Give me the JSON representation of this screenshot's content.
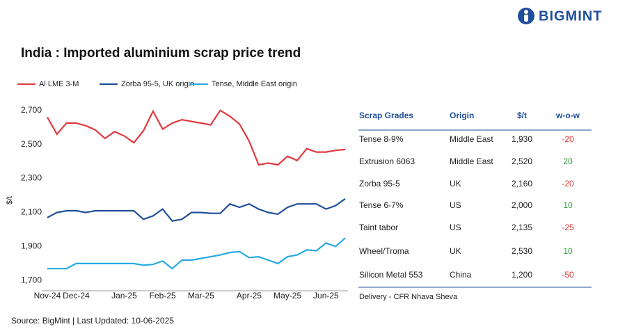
{
  "brand": "BIGMINT",
  "chart_data": {
    "type": "line",
    "title": "India : Imported aluminium scrap price trend",
    "y_label": "$/t",
    "categories": [
      "Nov-24",
      null,
      null,
      "Dec-24",
      null,
      null,
      null,
      null,
      "Jan-25",
      null,
      null,
      null,
      "Feb-25",
      null,
      null,
      null,
      "Mar-25",
      null,
      null,
      null,
      null,
      "Apr-25",
      null,
      null,
      null,
      "May-25",
      null,
      null,
      null,
      "Jun-25",
      null,
      null
    ],
    "series": [
      {
        "name": "Al LME 3-M",
        "color": "#e0393e",
        "values": [
          2660,
          2560,
          2625,
          2625,
          2610,
          2585,
          2535,
          2575,
          2550,
          2510,
          2580,
          2695,
          2590,
          2625,
          2645,
          2635,
          2625,
          2615,
          2700,
          2665,
          2620,
          2520,
          2380,
          2390,
          2380,
          2430,
          2405,
          2475,
          2455,
          2455,
          2465,
          2470
        ]
      },
      {
        "name": "Zorba 95-5, UK origin",
        "color": "#1f4e9a",
        "values": [
          2070,
          2100,
          2110,
          2110,
          2100,
          2110,
          2110,
          2110,
          2110,
          2110,
          2060,
          2080,
          2120,
          2050,
          2060,
          2100,
          2100,
          2095,
          2095,
          2150,
          2130,
          2150,
          2120,
          2100,
          2090,
          2130,
          2150,
          2150,
          2150,
          2120,
          2140,
          2180
        ]
      },
      {
        "name": "Tense, Middle East origin",
        "color": "#27a9e1",
        "values": [
          1770,
          1770,
          1770,
          1800,
          1800,
          1800,
          1800,
          1800,
          1800,
          1800,
          1790,
          1795,
          1815,
          1770,
          1820,
          1820,
          1830,
          1840,
          1850,
          1865,
          1870,
          1835,
          1840,
          1820,
          1800,
          1840,
          1850,
          1880,
          1875,
          1920,
          1900,
          1950
        ]
      }
    ],
    "ylim": [
      1640,
      2760
    ],
    "yticks": [
      {
        "value": 1700,
        "label": "1,700"
      },
      {
        "value": 1900,
        "label": "1,900"
      },
      {
        "value": 2100,
        "label": "2,100"
      },
      {
        "value": 2300,
        "label": "2,300"
      },
      {
        "value": 2500,
        "label": "2,500"
      },
      {
        "value": 2700,
        "label": "2,700"
      }
    ],
    "legend": "top",
    "grid": false
  },
  "table": {
    "header": [
      "Scrap Grades",
      "Origin",
      "$/t",
      "w-o-w"
    ],
    "rows": [
      [
        "Tense 8-9%",
        "Middle East",
        "1,930",
        "-20"
      ],
      [
        "Extrusion 6063",
        "Middle East",
        "2,520",
        "20"
      ],
      [
        "Zorba 95-5",
        "UK",
        "2,160",
        "-20"
      ],
      [
        "Tense 6-7%",
        "US",
        "2,000",
        "10"
      ],
      [
        "Taint tabor",
        "US",
        "2,135",
        "-25"
      ],
      [
        "Wheel/Troma",
        "UK",
        "2,530",
        "10"
      ],
      [
        "Silicon Metal 553",
        "China",
        "1,200",
        "-50"
      ]
    ],
    "note": "Delivery - CFR Nhava Sheva"
  },
  "source": "Source: BigMint | Last Updated: 10-06-2025"
}
